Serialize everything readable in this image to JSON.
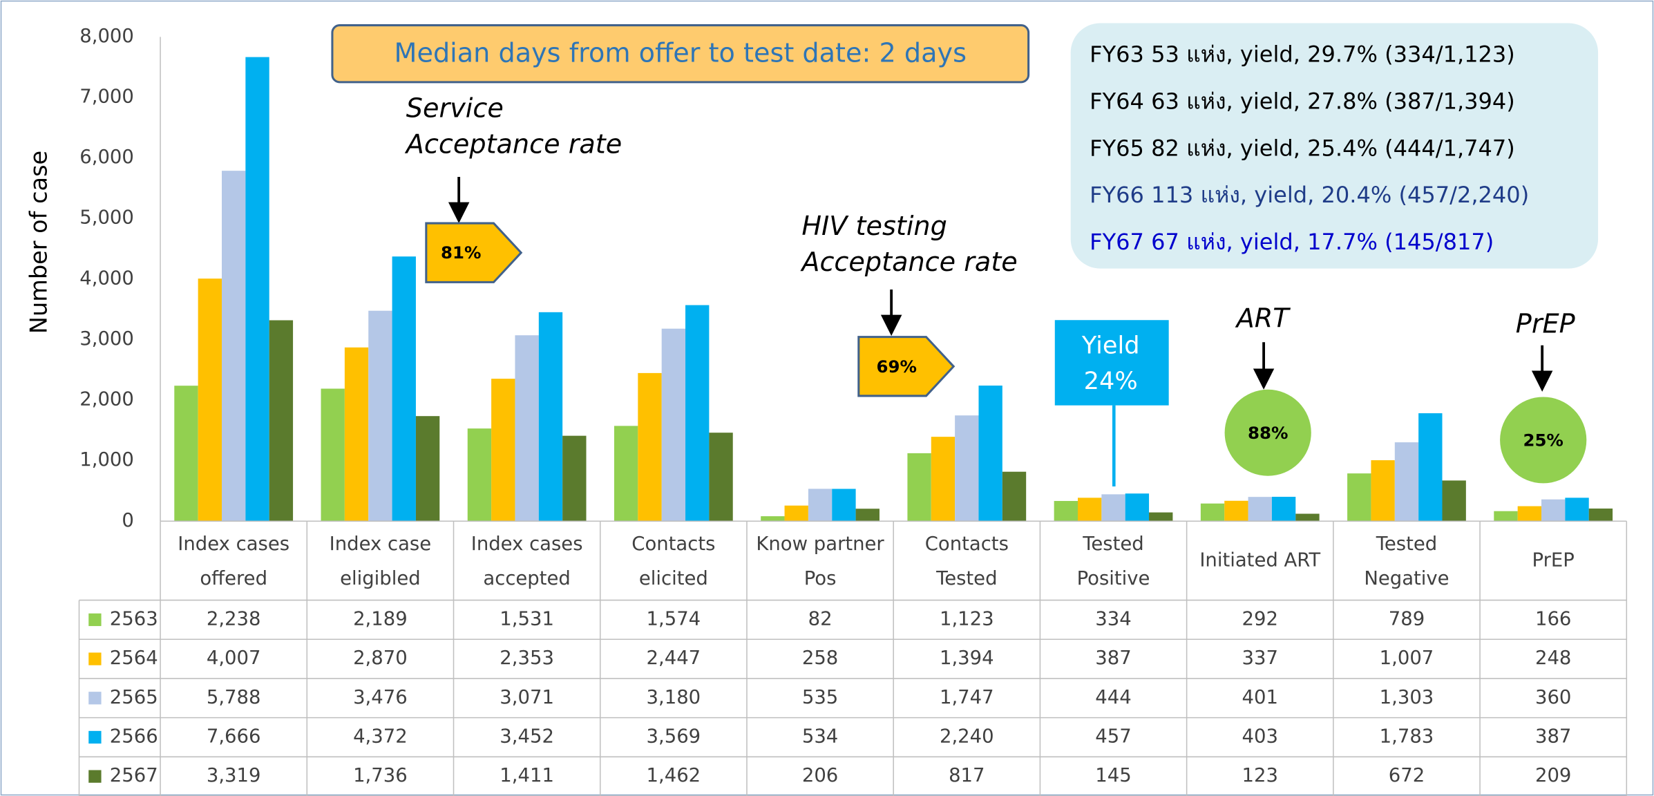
{
  "chart_data": {
    "type": "bar",
    "ylabel": "Number of case",
    "ylim": [
      0,
      8000
    ],
    "yticks": [
      0,
      {
        "value": 1000,
        "label": "1,000"
      },
      {
        "value": 2000,
        "label": "2,000"
      },
      {
        "value": 3000,
        "label": "3,000"
      },
      {
        "value": 4000,
        "label": "4,000"
      },
      {
        "value": 5000,
        "label": "5,000"
      },
      {
        "value": 6000,
        "label": "6,000"
      },
      {
        "value": 7000,
        "label": "7,000"
      },
      {
        "value": 8000,
        "label": "8,000"
      }
    ],
    "grid": false,
    "categories": [
      "Index cases\noffered",
      "Index case\neligibled",
      "Index cases\naccepted",
      "Contacts\nelicited",
      "Know partner\nPos",
      "Contacts\nTested",
      "Tested\nPositive",
      "Initiated ART",
      "Tested\nNegative",
      "PrEP"
    ],
    "series": [
      {
        "name": "2563",
        "color": "#92d050",
        "values": [
          2238,
          2189,
          1531,
          1574,
          82,
          1123,
          334,
          292,
          789,
          166
        ],
        "value_labels": [
          "2,238",
          "2,189",
          "1,531",
          "1,574",
          "82",
          "1,123",
          "334",
          "292",
          "789",
          "166"
        ]
      },
      {
        "name": "2564",
        "color": "#ffc000",
        "values": [
          4007,
          2870,
          2353,
          2447,
          258,
          1394,
          387,
          337,
          1007,
          248
        ],
        "value_labels": [
          "4,007",
          "2,870",
          "2,353",
          "2,447",
          "258",
          "1,394",
          "387",
          "337",
          "1,007",
          "248"
        ]
      },
      {
        "name": "2565",
        "color": "#b4c7e7",
        "values": [
          5788,
          3476,
          3071,
          3180,
          535,
          1747,
          444,
          401,
          1303,
          360
        ],
        "value_labels": [
          "5,788",
          "3,476",
          "3,071",
          "3,180",
          "535",
          "1,747",
          "444",
          "401",
          "1,303",
          "360"
        ]
      },
      {
        "name": "2566",
        "color": "#00b0f0",
        "values": [
          7666,
          4372,
          3452,
          3569,
          534,
          2240,
          457,
          403,
          1783,
          387
        ],
        "value_labels": [
          "7,666",
          "4,372",
          "3,452",
          "3,569",
          "534",
          "2,240",
          "457",
          "403",
          "1,783",
          "387"
        ]
      },
      {
        "name": "2567",
        "color": "#5b7b2d",
        "values": [
          3319,
          1736,
          1411,
          1462,
          206,
          817,
          145,
          123,
          672,
          209
        ],
        "value_labels": [
          "3,319",
          "1,736",
          "1,411",
          "1,462",
          "206",
          "817",
          "145",
          "123",
          "672",
          "209"
        ]
      }
    ],
    "annotations": [
      "Median days from offer to test date: 2 days",
      "Service\nAcceptance rate",
      "81%",
      "HIV testing\nAcceptance rate",
      "69%",
      "Yield\n24%",
      "ART",
      "88%",
      "PrEP",
      "25%"
    ],
    "info_box": [
      "FY63 53 แห่ง, yield, 29.7% (334/1,123)",
      "FY64 63 แห่ง, yield, 27.8% (387/1,394)",
      "FY65 82 แห่ง, yield, 25.4% (444/1,747)",
      "FY66 113 แห่ง, yield, 20.4% (457/2,240)",
      "FY67  67 แห่ง, yield, 17.7% (145/817)"
    ]
  }
}
